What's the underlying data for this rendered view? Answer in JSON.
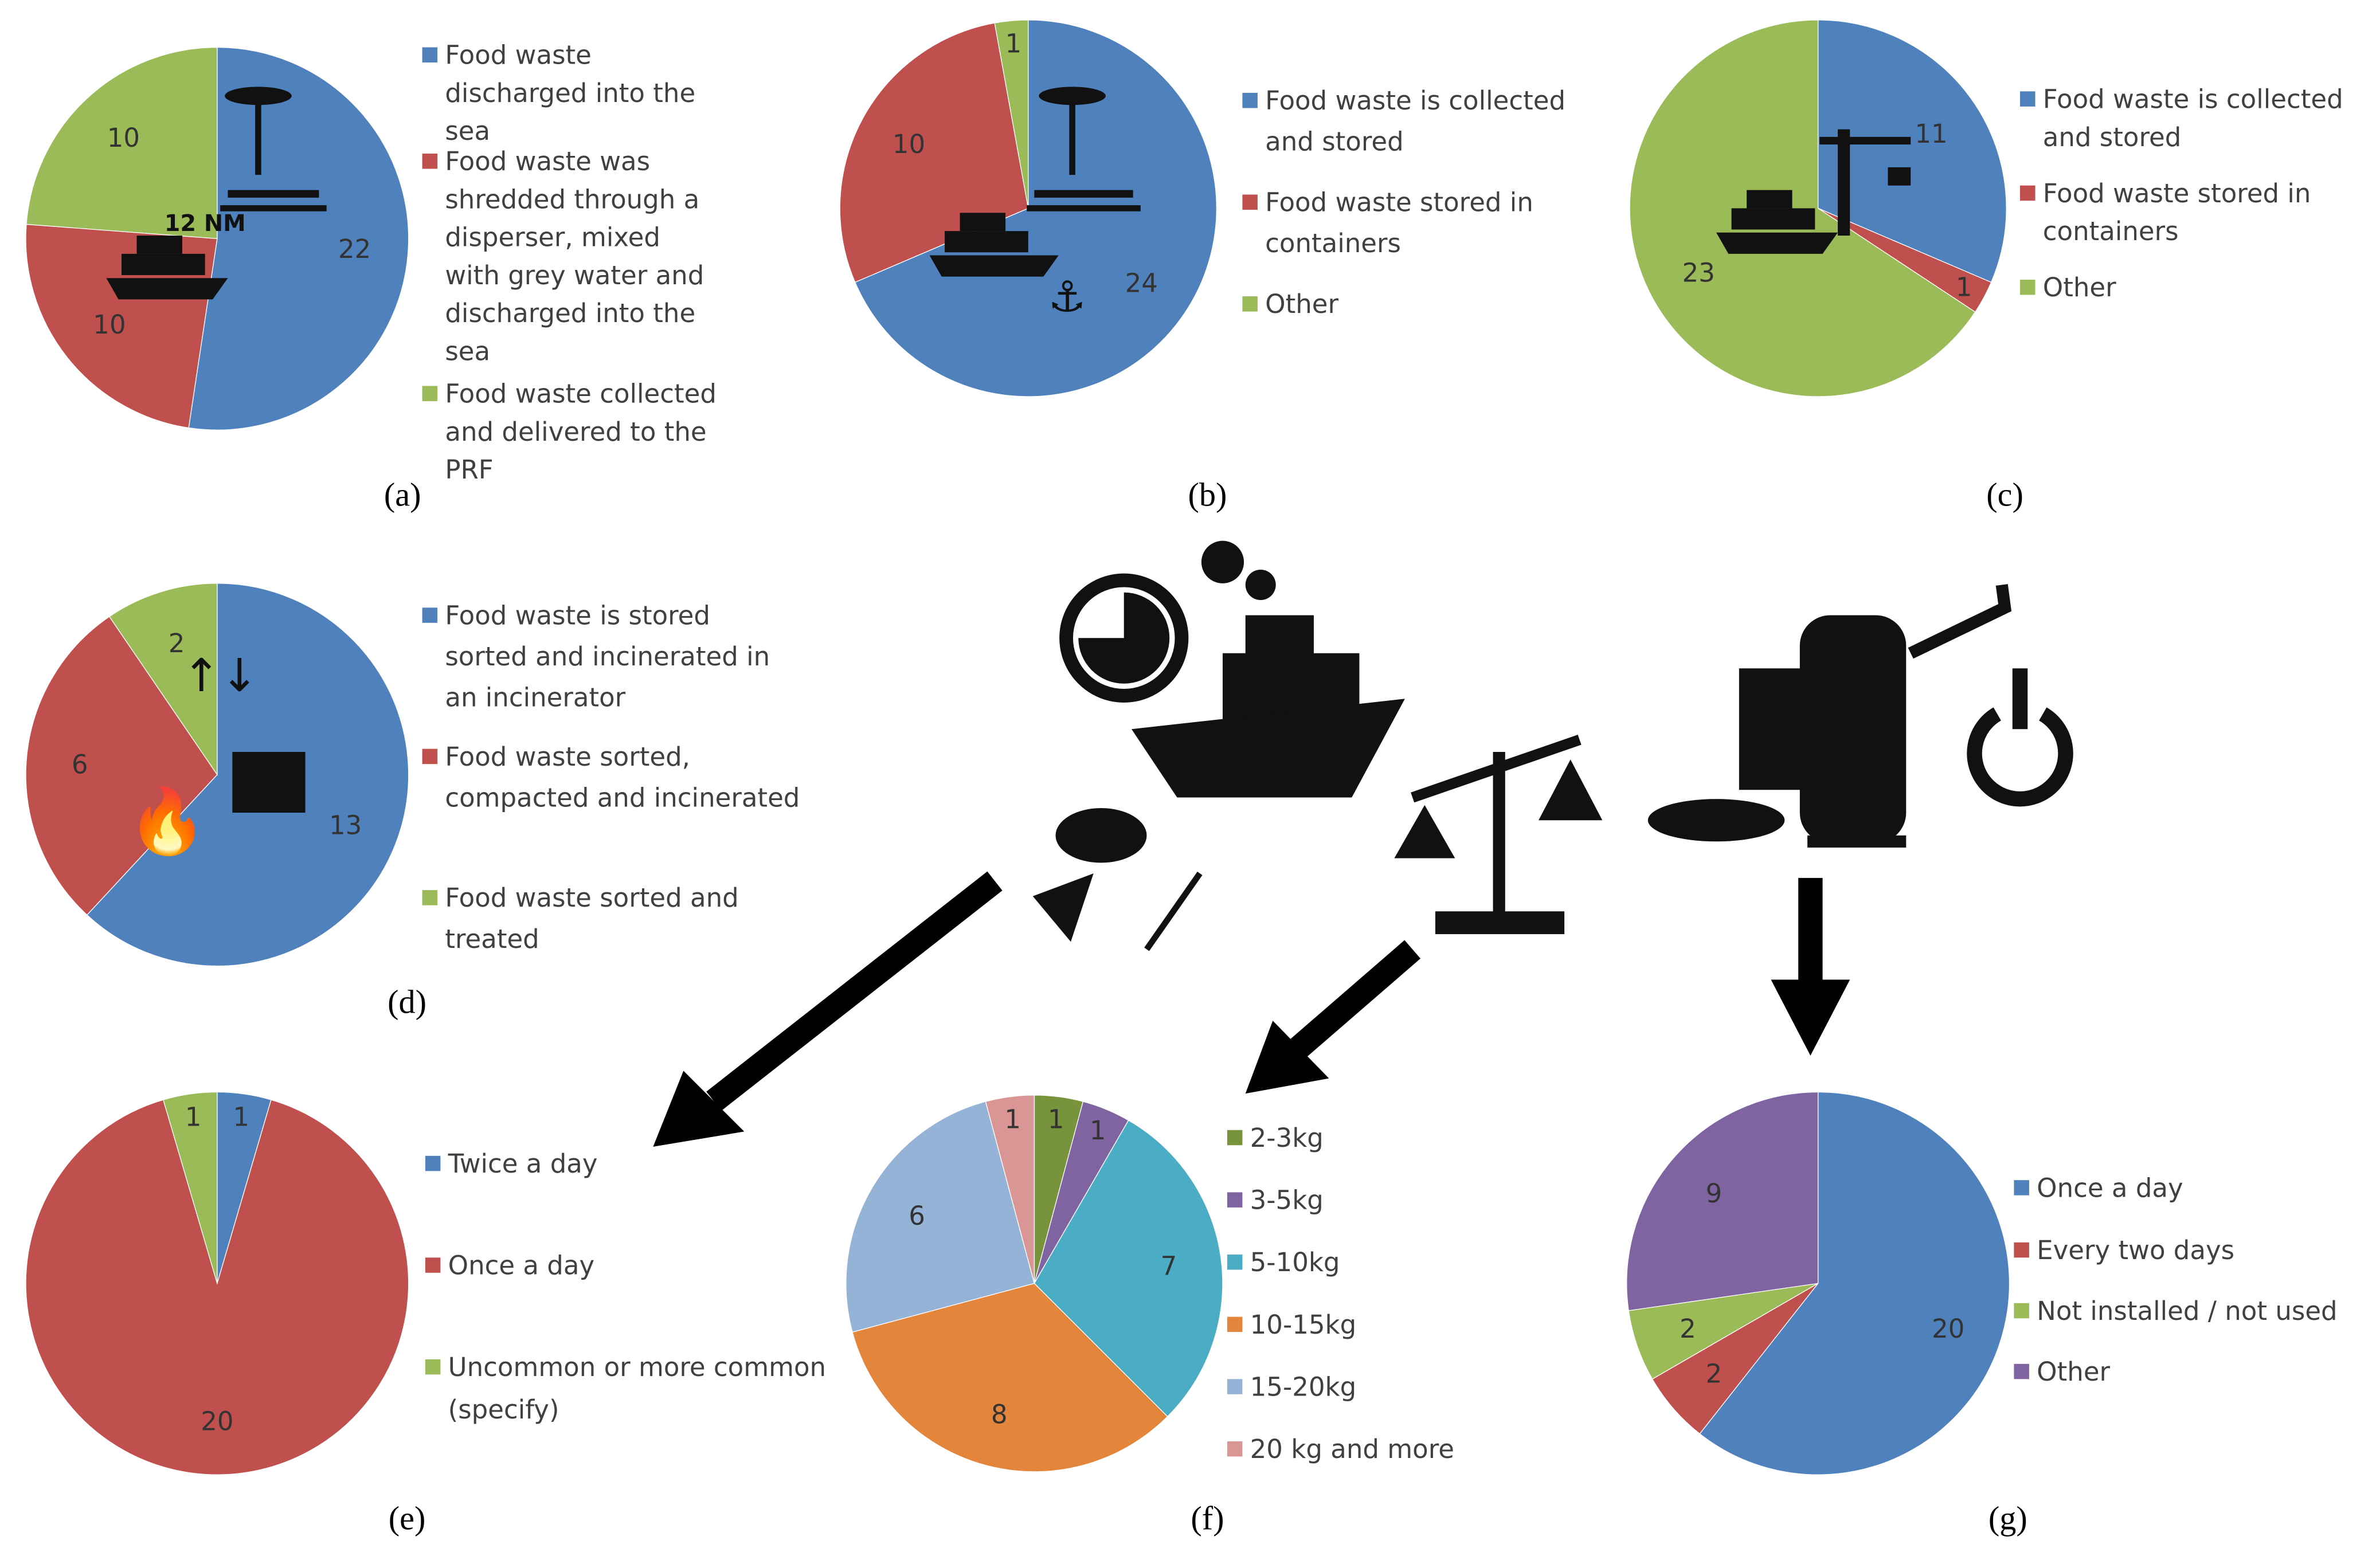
{
  "chart_data": [
    {
      "type": "pie",
      "label": "(a)",
      "annotation": "12 NM",
      "categories": [
        "Food waste discharged into the sea",
        "Food waste was shredded through a disperser, mixed with grey water and discharged into the sea",
        "Food waste collected and delivered to the PRF"
      ],
      "values": [
        22,
        10,
        10
      ],
      "colors": [
        "#4f81bd",
        "#c0504d",
        "#9bbb59"
      ]
    },
    {
      "type": "pie",
      "label": "(b)",
      "categories": [
        "Food waste is collected and stored",
        "Food waste stored in containers",
        "Other"
      ],
      "values": [
        24,
        10,
        1
      ],
      "colors": [
        "#4f81bd",
        "#c0504d",
        "#9bbb59"
      ]
    },
    {
      "type": "pie",
      "label": "(c)",
      "categories": [
        "Food waste is collected and stored",
        "Food waste stored in containers",
        "Other"
      ],
      "values": [
        11,
        1,
        23
      ],
      "colors": [
        "#4f81bd",
        "#c0504d",
        "#9bbb59"
      ]
    },
    {
      "type": "pie",
      "label": "(d)",
      "categories": [
        "Food waste is stored sorted and incinerated in an incinerator",
        "Food waste sorted, compacted and incinerated",
        "Food waste sorted and treated"
      ],
      "values": [
        13,
        6,
        2
      ],
      "colors": [
        "#4f81bd",
        "#c0504d",
        "#9bbb59"
      ]
    },
    {
      "type": "pie",
      "label": "(e)",
      "categories": [
        "Twice a day",
        "Once a day",
        "Uncommon or more common (specify)"
      ],
      "values": [
        1,
        20,
        1
      ],
      "colors": [
        "#4f81bd",
        "#c0504d",
        "#9bbb59"
      ]
    },
    {
      "type": "pie",
      "label": "(f)",
      "categories": [
        "2-3kg",
        "3-5kg",
        "5-10kg",
        "10-15kg",
        "15-20kg",
        "20 kg and more"
      ],
      "values": [
        1,
        1,
        7,
        8,
        6,
        1
      ],
      "colors": [
        "#77933c",
        "#8064a2",
        "#4bacc6",
        "#e3853a",
        "#95b3d7",
        "#d99694"
      ]
    },
    {
      "type": "pie",
      "label": "(g)",
      "categories": [
        "Once a day",
        "Every two days",
        "Not installed / not used",
        "Other"
      ],
      "values": [
        20,
        2,
        2,
        9
      ],
      "colors": [
        "#4f81bd",
        "#c0504d",
        "#9bbb59",
        "#8064a2"
      ]
    }
  ]
}
